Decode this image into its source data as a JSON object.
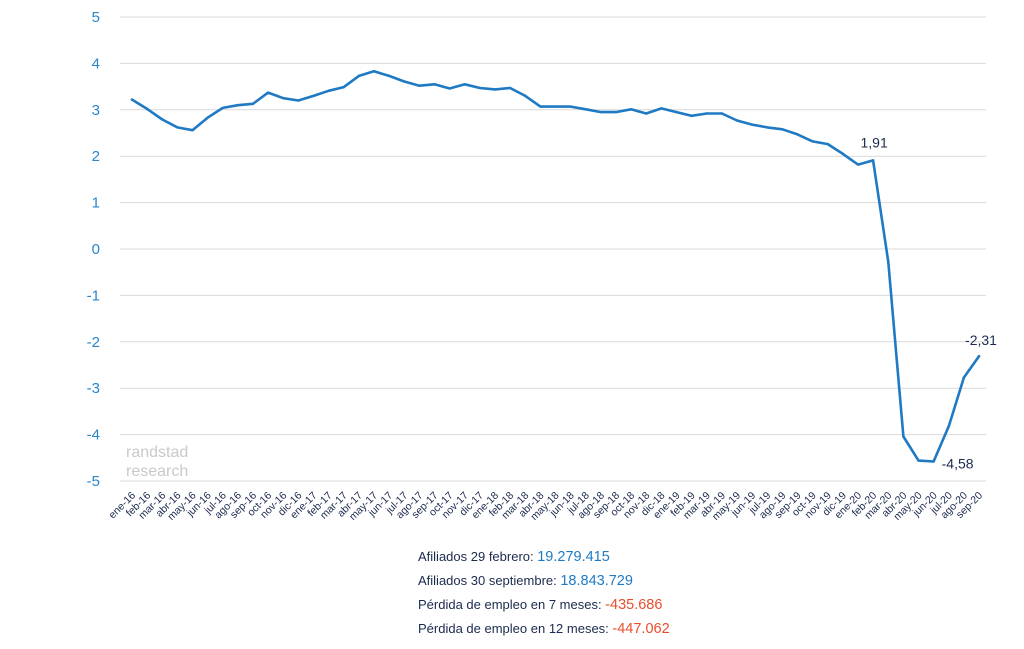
{
  "chart_data": {
    "type": "line",
    "title": "",
    "xlabel": "",
    "ylabel": "",
    "ylim": [
      -5,
      5
    ],
    "yticks": [
      5,
      4,
      3,
      2,
      1,
      0,
      -1,
      -2,
      -3,
      -4,
      -5
    ],
    "grid": "horizontal",
    "categories": [
      "ene-16",
      "feb-16",
      "mar-16",
      "abr-16",
      "may-16",
      "jun-16",
      "jul-16",
      "ago-16",
      "sep-16",
      "oct-16",
      "nov-16",
      "dic-16",
      "ene-17",
      "feb-17",
      "mar-17",
      "abr-17",
      "may-17",
      "jun-17",
      "jul-17",
      "ago-17",
      "sep-17",
      "oct-17",
      "nov-17",
      "dic-17",
      "ene-18",
      "feb-18",
      "mar-18",
      "abr-18",
      "may-18",
      "jun-18",
      "jul-18",
      "ago-18",
      "sep-18",
      "oct-18",
      "nov-18",
      "dic-18",
      "ene-19",
      "feb-19",
      "mar-19",
      "abr-19",
      "may-19",
      "jun-19",
      "jul-19",
      "ago-19",
      "sep-19",
      "oct-19",
      "nov-19",
      "dic-19",
      "ene-20",
      "feb-20",
      "mar-20",
      "abr-20",
      "may-20",
      "jun-20",
      "jul-20",
      "ago-20",
      "sep-20"
    ],
    "series": [
      {
        "values": [
          3.22,
          3.02,
          2.79,
          2.62,
          2.56,
          2.83,
          3.04,
          3.1,
          3.13,
          3.37,
          3.25,
          3.2,
          3.3,
          3.41,
          3.49,
          3.73,
          3.83,
          3.73,
          3.61,
          3.52,
          3.55,
          3.46,
          3.55,
          3.47,
          3.44,
          3.47,
          3.3,
          3.07,
          3.07,
          3.07,
          3.01,
          2.95,
          2.95,
          3.01,
          2.92,
          3.03,
          2.95,
          2.87,
          2.92,
          2.92,
          2.77,
          2.68,
          2.62,
          2.58,
          2.47,
          2.32,
          2.26,
          2.05,
          1.82,
          1.91,
          -0.28,
          -4.04,
          -4.56,
          -4.58,
          -3.82,
          -2.77,
          -2.31
        ],
        "color": "#1f7ac3"
      }
    ],
    "annotations": [
      {
        "category": "feb-20",
        "label": "1,91"
      },
      {
        "category": "jun-20",
        "label": "-4,58"
      },
      {
        "category": "sep-20",
        "label": "-2,31"
      }
    ],
    "colors": {
      "line": "#1f7ac3",
      "axis_labels": "#2a86c9",
      "grid": "#d9d9d9",
      "text": "#1b2a4e"
    }
  },
  "watermark": {
    "line1": "randstad",
    "line2": "research"
  },
  "stats": [
    {
      "label": "Afiliados 29 febrero: ",
      "value": "19.279.415",
      "color": "#1f7ac3"
    },
    {
      "label": "Afiliados 30 septiembre: ",
      "value": "18.843.729",
      "color": "#1f7ac3"
    },
    {
      "label": "Pérdida de empleo en 7 meses: ",
      "value": "-435.686",
      "color": "#e94e2c"
    },
    {
      "label": "Pérdida de empleo en 12 meses: ",
      "value": "-447.062",
      "color": "#e94e2c"
    }
  ]
}
